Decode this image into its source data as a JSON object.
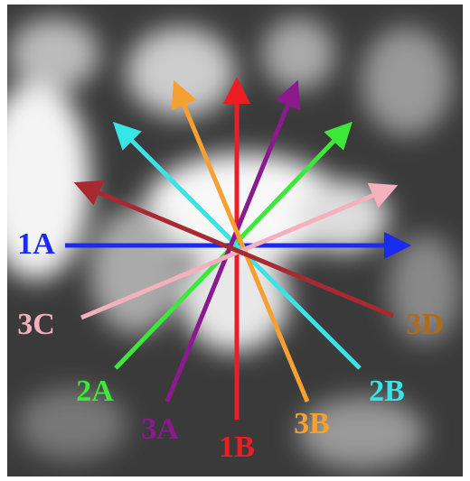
{
  "labels": {
    "1A": "1A",
    "1B": "1B",
    "2A": "2A",
    "2B": "2B",
    "3A": "3A",
    "3B": "3B",
    "3C": "3C",
    "3D": "3D"
  }
}
